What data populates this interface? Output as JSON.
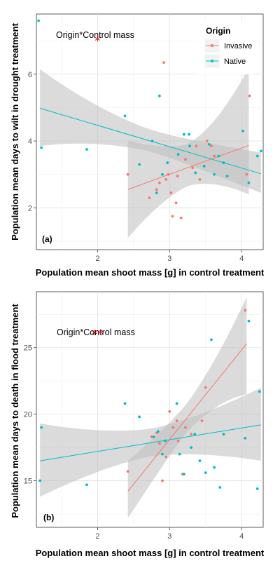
{
  "chart_data": [
    {
      "type": "scatter",
      "panel_label": "(a)",
      "xlabel": "Population mean shoot mass [g] in control treatment",
      "ylabel": "Population mean days to wilt in drought treatment",
      "xlim": [
        1.15,
        4.3
      ],
      "ylim": [
        0.75,
        7.8
      ],
      "x_ticks": [
        2,
        3,
        4
      ],
      "y_ticks": [
        2,
        4,
        6
      ],
      "grid": true,
      "annotation": {
        "text": "Origin*Control mass",
        "significance": "*",
        "at_x": 2.0,
        "at_y": 7.0
      },
      "legend": {
        "title": "Origin",
        "position": "top-right",
        "entries": [
          "Invasive",
          "Native"
        ]
      },
      "series": [
        {
          "name": "Invasive",
          "color": "#F8766D",
          "points": [
            [
              2.42,
              3.0
            ],
            [
              2.72,
              2.3
            ],
            [
              2.82,
              2.55
            ],
            [
              2.86,
              2.75
            ],
            [
              2.92,
              6.35
            ],
            [
              2.95,
              2.85
            ],
            [
              2.98,
              3.0
            ],
            [
              3.02,
              2.45
            ],
            [
              3.04,
              1.75
            ],
            [
              3.09,
              2.15
            ],
            [
              3.11,
              2.95
            ],
            [
              3.16,
              1.7
            ],
            [
              3.22,
              3.45
            ],
            [
              3.32,
              3.2
            ],
            [
              3.37,
              3.85
            ],
            [
              3.42,
              2.85
            ],
            [
              3.52,
              4.0
            ],
            [
              3.58,
              3.85
            ],
            [
              3.62,
              3.55
            ],
            [
              4.07,
              3.0
            ],
            [
              4.11,
              5.35
            ]
          ],
          "fit": {
            "x0": 2.42,
            "y0": 2.55,
            "x1": 4.1,
            "y1": 3.87,
            "band_lo0": 1.1,
            "band_hi0": 4.0,
            "band_lo1": 2.4,
            "band_hi1": 6.2
          }
        },
        {
          "name": "Native",
          "color": "#00BFC4",
          "points": [
            [
              1.18,
              7.6
            ],
            [
              1.22,
              3.8
            ],
            [
              1.85,
              3.75
            ],
            [
              2.38,
              4.75
            ],
            [
              2.58,
              3.3
            ],
            [
              2.76,
              4.0
            ],
            [
              2.82,
              2.45
            ],
            [
              2.86,
              5.35
            ],
            [
              2.9,
              3.0
            ],
            [
              2.97,
              3.35
            ],
            [
              3.12,
              3.6
            ],
            [
              3.2,
              4.2
            ],
            [
              3.27,
              4.2
            ],
            [
              3.28,
              3.85
            ],
            [
              3.36,
              3.05
            ],
            [
              3.48,
              3.25
            ],
            [
              3.55,
              3.9
            ],
            [
              3.62,
              3.0
            ],
            [
              3.68,
              3.55
            ],
            [
              3.75,
              3.35
            ],
            [
              3.8,
              2.95
            ],
            [
              4.02,
              4.3
            ],
            [
              4.1,
              2.75
            ],
            [
              4.22,
              3.55
            ],
            [
              4.27,
              3.7
            ]
          ],
          "fit": {
            "x0": 1.2,
            "y0": 4.98,
            "x1": 4.27,
            "y1": 3.02,
            "band_lo0": 3.85,
            "band_hi0": 6.15,
            "band_lo1": 2.45,
            "band_hi1": 3.65
          }
        }
      ]
    },
    {
      "type": "scatter",
      "panel_label": "(b)",
      "xlabel": "Population mean shoot mass [g] in control treatment",
      "ylabel": "Population mean days to death in flood treatment",
      "xlim": [
        1.15,
        4.3
      ],
      "ylim": [
        11.5,
        29.2
      ],
      "x_ticks": [
        2,
        3,
        4
      ],
      "y_ticks": [
        15,
        20,
        25
      ],
      "grid": true,
      "annotation": {
        "text": "Origin*Control mass",
        "significance": "**",
        "at_x": 2.0,
        "at_y": 26.0
      },
      "series": [
        {
          "name": "Invasive",
          "color": "#F8766D",
          "points": [
            [
              2.42,
              15.7
            ],
            [
              2.75,
              18.3
            ],
            [
              2.82,
              18.6
            ],
            [
              2.86,
              17.8
            ],
            [
              2.9,
              15.0
            ],
            [
              2.95,
              16.8
            ],
            [
              3.0,
              20.2
            ],
            [
              3.05,
              19.0
            ],
            [
              3.1,
              19.5
            ],
            [
              3.12,
              18.0
            ],
            [
              3.18,
              15.5
            ],
            [
              3.22,
              19.0
            ],
            [
              3.3,
              18.5
            ],
            [
              3.45,
              19.5
            ],
            [
              3.5,
              22.0
            ],
            [
              4.05,
              27.8
            ]
          ],
          "fit": {
            "x0": 2.42,
            "y0": 14.2,
            "x1": 4.07,
            "y1": 25.3,
            "band_lo0": 12.2,
            "band_hi0": 16.5,
            "band_lo1": 21.5,
            "band_hi1": 28.8
          }
        },
        {
          "name": "Native",
          "color": "#00BFC4",
          "points": [
            [
              1.2,
              15.0
            ],
            [
              1.22,
              19.0
            ],
            [
              1.85,
              14.7
            ],
            [
              2.38,
              20.8
            ],
            [
              2.58,
              19.8
            ],
            [
              2.78,
              18.3
            ],
            [
              2.84,
              18.7
            ],
            [
              2.9,
              17.0
            ],
            [
              2.94,
              18.0
            ],
            [
              3.1,
              20.8
            ],
            [
              3.14,
              17.0
            ],
            [
              3.2,
              15.5
            ],
            [
              3.3,
              17.5
            ],
            [
              3.35,
              18.5
            ],
            [
              3.42,
              16.5
            ],
            [
              3.5,
              15.6
            ],
            [
              3.58,
              25.6
            ],
            [
              3.62,
              16.0
            ],
            [
              3.7,
              14.5
            ],
            [
              3.75,
              18.5
            ],
            [
              4.05,
              18.2
            ],
            [
              4.1,
              27.0
            ],
            [
              4.22,
              14.4
            ],
            [
              4.25,
              21.7
            ]
          ],
          "fit": {
            "x0": 1.2,
            "y0": 16.5,
            "x1": 4.27,
            "y1": 19.2,
            "band_lo0": 13.8,
            "band_hi0": 19.3,
            "band_lo1": 16.5,
            "band_hi1": 22.0
          }
        }
      ]
    }
  ]
}
